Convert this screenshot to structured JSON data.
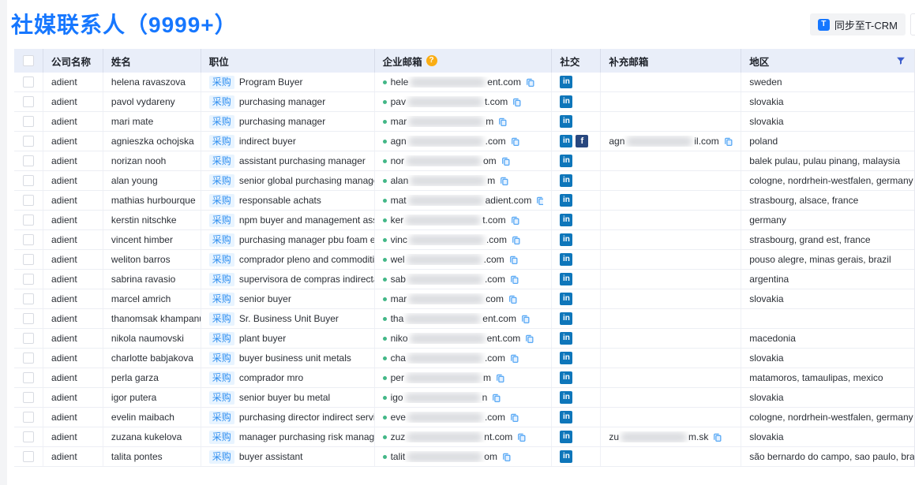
{
  "page": {
    "title": "社媒联系人（9999+）",
    "sync_button_label": "同步至T-CRM"
  },
  "colors": {
    "title_blue": "#1677ff",
    "header_bg": "#e9eef9",
    "badge_bg": "#e8f4ff",
    "badge_text": "#2e8ef0",
    "linkedin": "#0e76ba",
    "facebook": "#28477e",
    "question_icon": "#faad14",
    "copy_icon": "#57a8f5",
    "green_dot": "#43b787"
  },
  "table": {
    "columns": [
      {
        "label": "公司名称"
      },
      {
        "label": "姓名"
      },
      {
        "label": "职位"
      },
      {
        "label": "企业邮箱",
        "icon": "question-icon"
      },
      {
        "label": "社交"
      },
      {
        "label": "补充邮箱"
      },
      {
        "label": "地区",
        "icon": "filter-icon"
      }
    ],
    "badge_label": "采购",
    "rows": [
      {
        "company": "adient",
        "name": "helena ravaszova",
        "position": "Program Buyer",
        "email": {
          "prefix": "hele",
          "suffix": "ent.com"
        },
        "social": [
          "linkedin"
        ],
        "extra_email": null,
        "region": "sweden"
      },
      {
        "company": "adient",
        "name": "pavol vydareny",
        "position": "purchasing manager",
        "email": {
          "prefix": "pav",
          "suffix": "t.com"
        },
        "social": [
          "linkedin"
        ],
        "extra_email": null,
        "region": "slovakia"
      },
      {
        "company": "adient",
        "name": "mari mate",
        "position": "purchasing manager",
        "email": {
          "prefix": "mar",
          "suffix": "m"
        },
        "social": [
          "linkedin"
        ],
        "extra_email": null,
        "region": "slovakia"
      },
      {
        "company": "adient",
        "name": "agnieszka ochojska",
        "position": "indirect buyer",
        "email": {
          "prefix": "agn",
          "suffix": ".com"
        },
        "social": [
          "linkedin",
          "facebook"
        ],
        "extra_email": {
          "prefix": "agn",
          "suffix": "il.com"
        },
        "region": "poland"
      },
      {
        "company": "adient",
        "name": "norizan nooh",
        "position": "assistant purchasing manager",
        "email": {
          "prefix": "nor",
          "suffix": "om"
        },
        "social": [
          "linkedin"
        ],
        "extra_email": null,
        "region": "balek pulau, pulau pinang, malaysia"
      },
      {
        "company": "adient",
        "name": "alan young",
        "position": "senior global purchasing manager",
        "email": {
          "prefix": "alan",
          "suffix": "m"
        },
        "social": [
          "linkedin"
        ],
        "extra_email": null,
        "region": "cologne, nordrhein-westfalen, germany"
      },
      {
        "company": "adient",
        "name": "mathias hurbourque",
        "position": "responsable achats",
        "email": {
          "prefix": "mat",
          "suffix": "adient.com"
        },
        "social": [
          "linkedin"
        ],
        "extra_email": null,
        "region": "strasbourg, alsace, france"
      },
      {
        "company": "adient",
        "name": "kerstin nitschke",
        "position": "npm buyer and management assistant",
        "email": {
          "prefix": "ker",
          "suffix": "t.com"
        },
        "social": [
          "linkedin"
        ],
        "extra_email": null,
        "region": "germany"
      },
      {
        "company": "adient",
        "name": "vincent himber",
        "position": "purchasing manager pbu foam europe",
        "email": {
          "prefix": "vinc",
          "suffix": ".com"
        },
        "social": [
          "linkedin"
        ],
        "extra_email": null,
        "region": "strasbourg, grand est, france"
      },
      {
        "company": "adient",
        "name": "weliton barros",
        "position": "comprador pleno and commodities",
        "email": {
          "prefix": "wel",
          "suffix": ".com"
        },
        "social": [
          "linkedin"
        ],
        "extra_email": null,
        "region": "pouso alegre, minas gerais, brazil"
      },
      {
        "company": "adient",
        "name": "sabrina ravasio",
        "position": "supervisora de compras indirectas",
        "email": {
          "prefix": "sab",
          "suffix": ".com"
        },
        "social": [
          "linkedin"
        ],
        "extra_email": null,
        "region": "argentina"
      },
      {
        "company": "adient",
        "name": "marcel amrich",
        "position": "senior buyer",
        "email": {
          "prefix": "mar",
          "suffix": "com"
        },
        "social": [
          "linkedin"
        ],
        "extra_email": null,
        "region": "slovakia"
      },
      {
        "company": "adient",
        "name": "thanomsak khampanu",
        "position": "Sr. Business Unit Buyer",
        "email": {
          "prefix": "tha",
          "suffix": "ent.com"
        },
        "social": [
          "linkedin"
        ],
        "extra_email": null,
        "region": ""
      },
      {
        "company": "adient",
        "name": "nikola naumovski",
        "position": "plant buyer",
        "email": {
          "prefix": "niko",
          "suffix": "ent.com"
        },
        "social": [
          "linkedin"
        ],
        "extra_email": null,
        "region": "macedonia"
      },
      {
        "company": "adient",
        "name": "charlotte babjakova",
        "position": "buyer business unit metals",
        "email": {
          "prefix": "cha",
          "suffix": ".com"
        },
        "social": [
          "linkedin"
        ],
        "extra_email": null,
        "region": "slovakia"
      },
      {
        "company": "adient",
        "name": "perla garza",
        "position": "comprador mro",
        "email": {
          "prefix": "per",
          "suffix": "m"
        },
        "social": [
          "linkedin"
        ],
        "extra_email": null,
        "region": "matamoros, tamaulipas, mexico"
      },
      {
        "company": "adient",
        "name": "igor putera",
        "position": "senior buyer bu metal",
        "email": {
          "prefix": "igo",
          "suffix": "n"
        },
        "social": [
          "linkedin"
        ],
        "extra_email": null,
        "region": "slovakia"
      },
      {
        "company": "adient",
        "name": "evelin maibach",
        "position": "purchasing director indirect services",
        "email": {
          "prefix": "eve",
          "suffix": ".com"
        },
        "social": [
          "linkedin"
        ],
        "extra_email": null,
        "region": "cologne, nordrhein-westfalen, germany"
      },
      {
        "company": "adient",
        "name": "zuzana kukelova",
        "position": "manager purchasing risk management",
        "email": {
          "prefix": "zuz",
          "suffix": "nt.com"
        },
        "social": [
          "linkedin"
        ],
        "extra_email": {
          "prefix": "zu",
          "suffix": "m.sk"
        },
        "region": "slovakia"
      },
      {
        "company": "adient",
        "name": "talita pontes",
        "position": "buyer assistant",
        "email": {
          "prefix": "talit",
          "suffix": "om"
        },
        "social": [
          "linkedin"
        ],
        "extra_email": null,
        "region": "são bernardo do campo, sao paulo, brazil"
      }
    ]
  }
}
